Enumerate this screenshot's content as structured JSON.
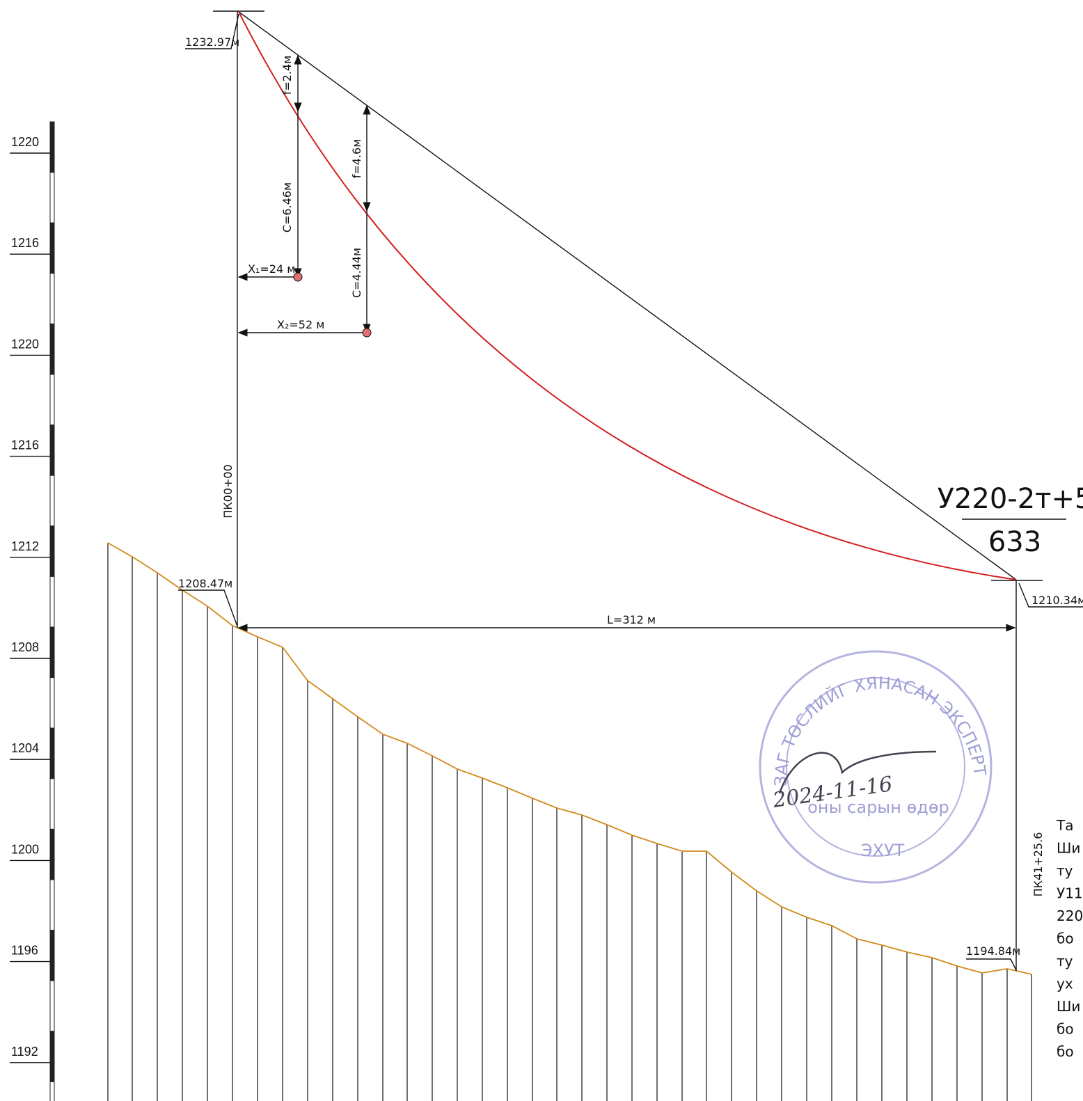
{
  "scale": {
    "labels": [
      "1220",
      "1216",
      "1220",
      "1216",
      "1212",
      "1208",
      "1204",
      "1200",
      "1196",
      "1192"
    ]
  },
  "profile": {
    "start_elevation": "1232.97м",
    "sag_1": "f=2.4м",
    "clearance_1": "C=6.46м",
    "offset_1": "X₁=24 м",
    "sag_2": "f=4.6м",
    "clearance_2": "C=4.44м",
    "offset_2": "X₂=52 м",
    "start_station": "ПК00+00",
    "start_ground": "1208.47м",
    "span_length": "L=312 м",
    "end_elevation": "1210.34м",
    "end_station": "ПК41+25.6",
    "end_ground": "1194.84м"
  },
  "tower": {
    "type": "У220-2т+5",
    "number": "633"
  },
  "stamp": {
    "title": "ЗАГ ТӨСЛИЙГ ХЯНАСАН ЭКСПЕРТ",
    "date": "2024-11-16",
    "date_caption": "оны сарын өдөр",
    "org": "ЭХУТ"
  },
  "notes": [
    "Та",
    "Ши",
    "ту",
    "У11",
    "220",
    "бо",
    "ту",
    "ух",
    "Ши",
    "бо",
    "бо"
  ]
}
